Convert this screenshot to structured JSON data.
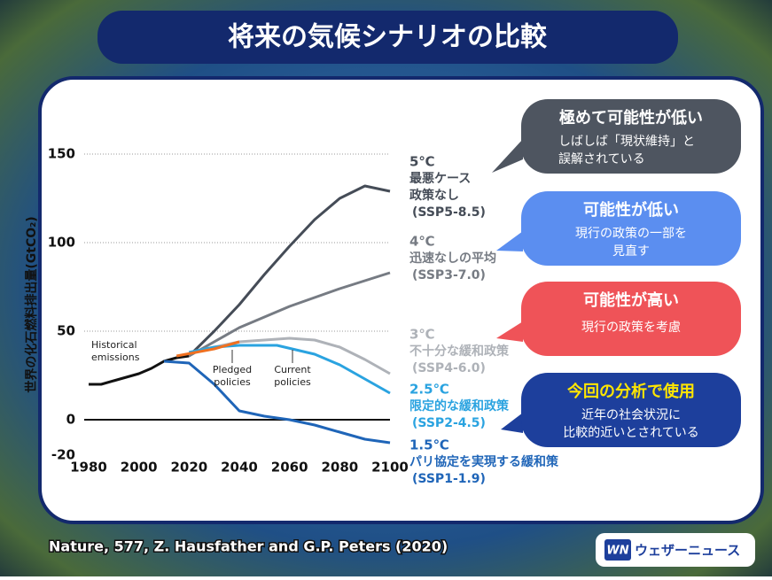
{
  "title": "将来の気候シナリオの比較",
  "chart_data": {
    "type": "line",
    "y_label": "世界の化石燃料排出量(GtCO₂)",
    "xlim": [
      1980,
      2100
    ],
    "xticks": [
      1980,
      2000,
      2020,
      2040,
      2060,
      2080,
      2100
    ],
    "ylim": [
      -20,
      150
    ],
    "yticks": [
      -20,
      0,
      50,
      100,
      150
    ],
    "grid": true,
    "series": [
      {
        "color": "#111111",
        "x": [
          1980,
          1985,
          1990,
          1995,
          2000,
          2005,
          2010,
          2015,
          2020
        ],
        "values": [
          20,
          20,
          22,
          24,
          26,
          29,
          33,
          35,
          36
        ]
      },
      {
        "name": "(SSP5-8.5)",
        "temp": "5℃",
        "desc": [
          "最悪ケース",
          "政策なし"
        ],
        "color": "#454c57",
        "x": [
          2020,
          2030,
          2040,
          2050,
          2060,
          2070,
          2080,
          2090,
          2100
        ],
        "values": [
          36,
          50,
          65,
          82,
          98,
          113,
          125,
          132,
          129
        ]
      },
      {
        "name": "(SSP3-7.0)",
        "temp": "4℃",
        "desc": [
          "迅速なしの平均"
        ],
        "color": "#767b83",
        "x": [
          2020,
          2040,
          2060,
          2080,
          2100
        ],
        "values": [
          36,
          52,
          64,
          74,
          83
        ]
      },
      {
        "name": "(SSP4-6.0)",
        "temp": "3℃",
        "desc": [
          "不十分な緩和政策"
        ],
        "color": "#aeb2b8",
        "x": [
          2020,
          2040,
          2060,
          2070,
          2080,
          2090,
          2100
        ],
        "values": [
          38,
          44,
          46,
          45,
          41,
          34,
          26
        ]
      },
      {
        "name": "(SSP2-4.5)",
        "temp": "2.5℃",
        "desc": [
          "限定的な緩和政策"
        ],
        "color": "#2aa3e0",
        "x": [
          2020,
          2030,
          2040,
          2055,
          2070,
          2080,
          2090,
          2100
        ],
        "values": [
          38,
          41,
          42,
          42,
          37,
          31,
          23,
          15
        ]
      },
      {
        "name": "(SSP1-1.9)",
        "temp": "1.5℃",
        "desc": [
          "パリ協定を実現する緩和策"
        ],
        "color": "#1f65b8",
        "x": [
          2010,
          2020,
          2030,
          2040,
          2050,
          2060,
          2070,
          2080,
          2090,
          2100
        ],
        "values": [
          33,
          32,
          20,
          5,
          2,
          0,
          -3,
          -7,
          -11,
          -13
        ]
      },
      {
        "color": "#f07020",
        "x": [
          2015,
          2030,
          2040
        ],
        "values": [
          36,
          40,
          44
        ]
      }
    ],
    "annotations": [
      {
        "lines": [
          "Historical",
          "emissions"
        ]
      },
      {
        "lines": [
          "Pledged",
          "policies"
        ]
      },
      {
        "lines": [
          "Current",
          "policies"
        ]
      }
    ]
  },
  "callouts": [
    {
      "title": "極めて可能性が低い",
      "lines": [
        "しばしば「現状維持」と",
        "誤解されている"
      ],
      "color": "#4e5560"
    },
    {
      "title": "可能性が低い",
      "lines": [
        "現行の政策の一部を",
        "見直す"
      ],
      "color": "#5b8ef0"
    },
    {
      "title": "可能性が高い",
      "lines": [
        "現行の政策を考慮"
      ],
      "color": "#ef5358"
    },
    {
      "title": "今回の分析で使用",
      "lines": [
        "近年の社会状況に",
        "比較的近いとされている"
      ],
      "color": "#1d3f9c"
    }
  ],
  "source": "Nature, 577, Z. Hausfather and G.P. Peters (2020)",
  "logo": {
    "mark": "WN",
    "text": "ウェザーニュース"
  }
}
